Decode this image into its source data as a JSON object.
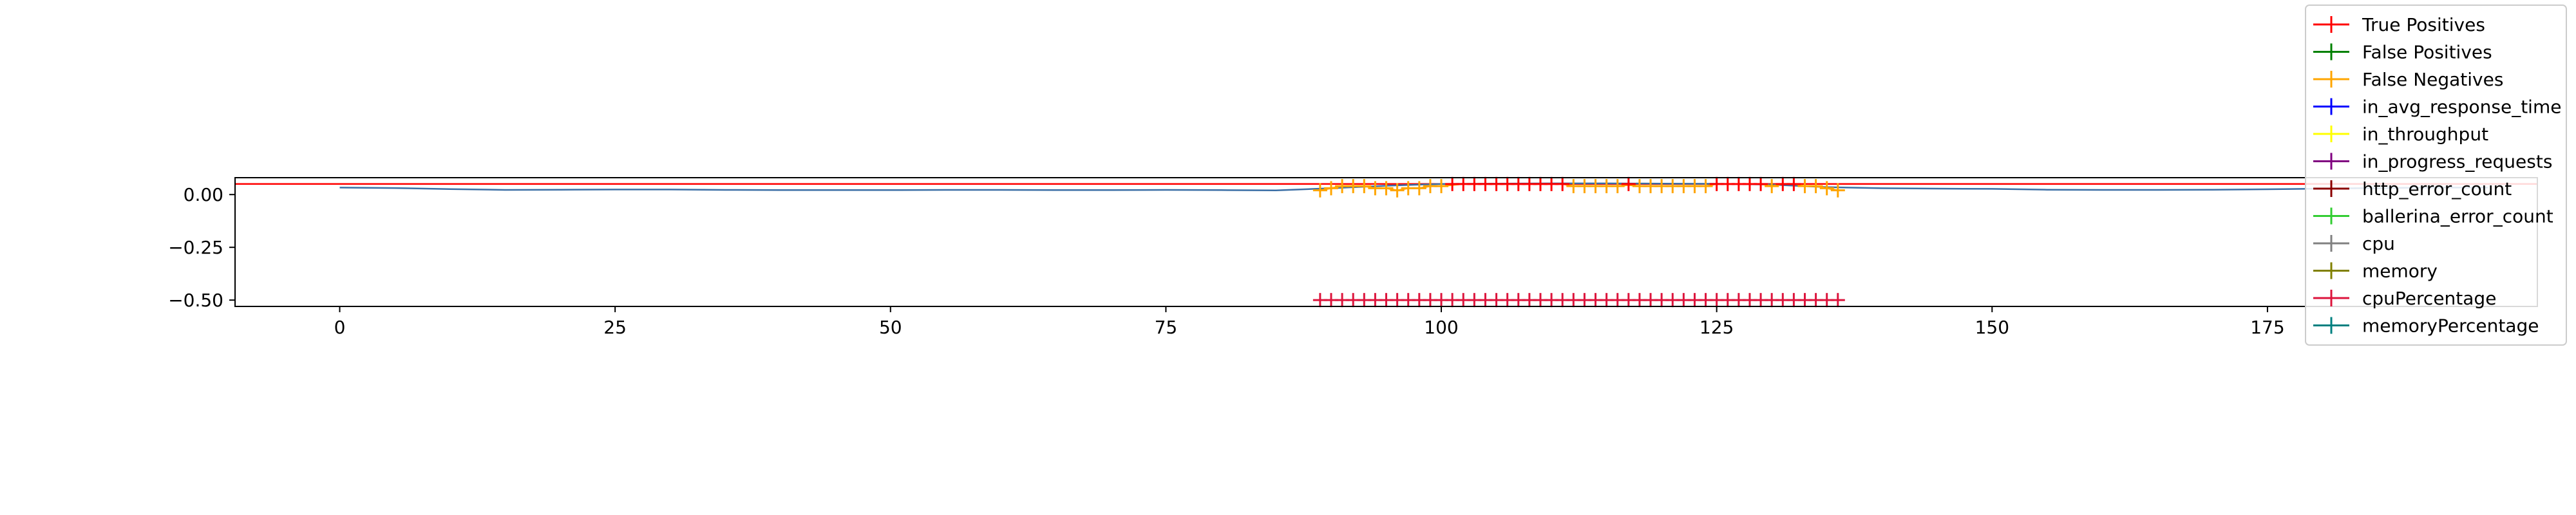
{
  "chart_data": {
    "type": "line",
    "title": "",
    "xlabel": "",
    "ylabel": "",
    "xlim": [
      -9.5,
      199.5
    ],
    "ylim": [
      -0.53,
      0.08
    ],
    "x_ticks": [
      0,
      25,
      50,
      75,
      100,
      125,
      150,
      175
    ],
    "x_tick_labels": [
      "0",
      "25",
      "50",
      "75",
      "100",
      "125",
      "150",
      "175"
    ],
    "y_ticks": [
      0.0,
      -0.25,
      -0.5
    ],
    "y_tick_labels": [
      "0.00",
      "−0.25",
      "−0.50"
    ],
    "grid": false,
    "legend": "top-right",
    "series": [
      {
        "name": "True Positives",
        "color": "#ff0000",
        "marker": "+",
        "x": [
          101,
          102,
          103,
          104,
          105,
          106,
          107,
          108,
          109,
          110,
          111,
          117,
          125,
          126,
          127,
          128,
          129,
          131,
          132
        ],
        "values": [
          0.05,
          0.05,
          0.05,
          0.05,
          0.05,
          0.05,
          0.05,
          0.05,
          0.05,
          0.05,
          0.05,
          0.05,
          0.05,
          0.05,
          0.05,
          0.05,
          0.05,
          0.05,
          0.05
        ]
      },
      {
        "name": "False Positives",
        "color": "#008000",
        "marker": "+",
        "x": [],
        "values": []
      },
      {
        "name": "False Negatives",
        "color": "#ffa500",
        "marker": "+",
        "x": [
          89,
          90,
          91,
          92,
          93,
          94,
          95,
          96,
          97,
          98,
          99,
          100,
          112,
          113,
          114,
          115,
          116,
          118,
          119,
          120,
          121,
          122,
          123,
          124,
          130,
          133,
          134,
          135,
          136
        ],
        "values": [
          0.02,
          0.03,
          0.04,
          0.04,
          0.04,
          0.03,
          0.03,
          0.02,
          0.03,
          0.03,
          0.04,
          0.04,
          0.04,
          0.04,
          0.04,
          0.04,
          0.04,
          0.04,
          0.04,
          0.04,
          0.04,
          0.04,
          0.04,
          0.04,
          0.04,
          0.04,
          0.04,
          0.03,
          0.02
        ]
      },
      {
        "name": "in_avg_response_time",
        "color": "#0000ff",
        "marker": "+",
        "x": [],
        "values": []
      },
      {
        "name": "in_throughput",
        "color": "#ffff00",
        "marker": "+",
        "x": [],
        "values": []
      },
      {
        "name": "in_progress_requests",
        "color": "#800080",
        "marker": "+",
        "x": [],
        "values": []
      },
      {
        "name": "http_error_count",
        "color": "#8b0000",
        "marker": "+",
        "x": [],
        "values": []
      },
      {
        "name": "ballerina_error_count",
        "color": "#32cd32",
        "marker": "+",
        "x": [],
        "values": []
      },
      {
        "name": "cpu",
        "color": "#808080",
        "marker": "+",
        "x": [],
        "values": []
      },
      {
        "name": "memory",
        "color": "#808000",
        "marker": "+",
        "x": [],
        "values": []
      },
      {
        "name": "cpuPercentage",
        "color": "#dc143c",
        "marker": "+",
        "x": [
          89,
          90,
          91,
          92,
          93,
          94,
          95,
          96,
          97,
          98,
          99,
          100,
          101,
          102,
          103,
          104,
          105,
          106,
          107,
          108,
          109,
          110,
          111,
          112,
          113,
          114,
          115,
          116,
          117,
          118,
          119,
          120,
          121,
          122,
          123,
          124,
          125,
          126,
          127,
          128,
          129,
          130,
          131,
          132,
          133,
          134,
          135,
          136
        ],
        "values": [
          -0.5,
          -0.5,
          -0.5,
          -0.5,
          -0.5,
          -0.5,
          -0.5,
          -0.5,
          -0.5,
          -0.5,
          -0.5,
          -0.5,
          -0.5,
          -0.5,
          -0.5,
          -0.5,
          -0.5,
          -0.5,
          -0.5,
          -0.5,
          -0.5,
          -0.5,
          -0.5,
          -0.5,
          -0.5,
          -0.5,
          -0.5,
          -0.5,
          -0.5,
          -0.5,
          -0.5,
          -0.5,
          -0.5,
          -0.5,
          -0.5,
          -0.5,
          -0.5,
          -0.5,
          -0.5,
          -0.5,
          -0.5,
          -0.5,
          -0.5,
          -0.5,
          -0.5,
          -0.5,
          -0.5,
          -0.5
        ]
      },
      {
        "name": "memoryPercentage",
        "color": "#008080",
        "marker": "+",
        "x": [],
        "values": []
      }
    ],
    "lines": [
      {
        "color": "#ff0000",
        "x": [
          -9.5,
          199.5
        ],
        "values": [
          0.05,
          0.05
        ]
      },
      {
        "color": "#3a6ea5",
        "x": [
          0,
          5,
          10,
          15,
          20,
          25,
          30,
          35,
          40,
          45,
          50,
          55,
          60,
          65,
          70,
          75,
          80,
          85,
          90,
          95,
          100,
          105,
          110,
          115,
          120,
          125,
          130,
          135,
          140,
          145,
          150,
          155,
          160,
          165,
          170,
          175,
          180,
          185,
          190,
          195
        ],
        "values": [
          0.033,
          0.031,
          0.026,
          0.022,
          0.023,
          0.024,
          0.024,
          0.022,
          0.021,
          0.021,
          0.021,
          0.022,
          0.022,
          0.021,
          0.021,
          0.022,
          0.021,
          0.02,
          0.03,
          0.042,
          0.05,
          0.052,
          0.053,
          0.053,
          0.052,
          0.051,
          0.047,
          0.035,
          0.03,
          0.028,
          0.027,
          0.023,
          0.022,
          0.022,
          0.023,
          0.025,
          0.028,
          0.031,
          0.033,
          0.033
        ]
      },
      {
        "color": "#ffa500",
        "x": [
          89,
          90,
          91,
          92,
          93,
          94,
          95,
          96,
          97,
          98,
          99,
          100,
          101,
          102,
          103,
          104,
          105,
          106,
          107,
          108,
          109,
          110,
          111,
          112,
          113,
          114,
          115,
          116,
          117,
          118,
          119,
          120,
          121,
          122,
          123,
          124,
          125,
          126,
          127,
          128,
          129,
          130,
          131,
          132,
          133,
          134,
          135,
          136
        ],
        "values": [
          0.02,
          0.03,
          0.04,
          0.04,
          0.04,
          0.03,
          0.03,
          0.02,
          0.03,
          0.03,
          0.04,
          0.04,
          0.045,
          0.05,
          0.05,
          0.05,
          0.05,
          0.05,
          0.05,
          0.05,
          0.05,
          0.05,
          0.05,
          0.04,
          0.04,
          0.04,
          0.04,
          0.04,
          0.045,
          0.04,
          0.04,
          0.04,
          0.04,
          0.04,
          0.04,
          0.04,
          0.05,
          0.05,
          0.05,
          0.05,
          0.05,
          0.04,
          0.05,
          0.05,
          0.04,
          0.04,
          0.03,
          0.02
        ]
      }
    ]
  }
}
